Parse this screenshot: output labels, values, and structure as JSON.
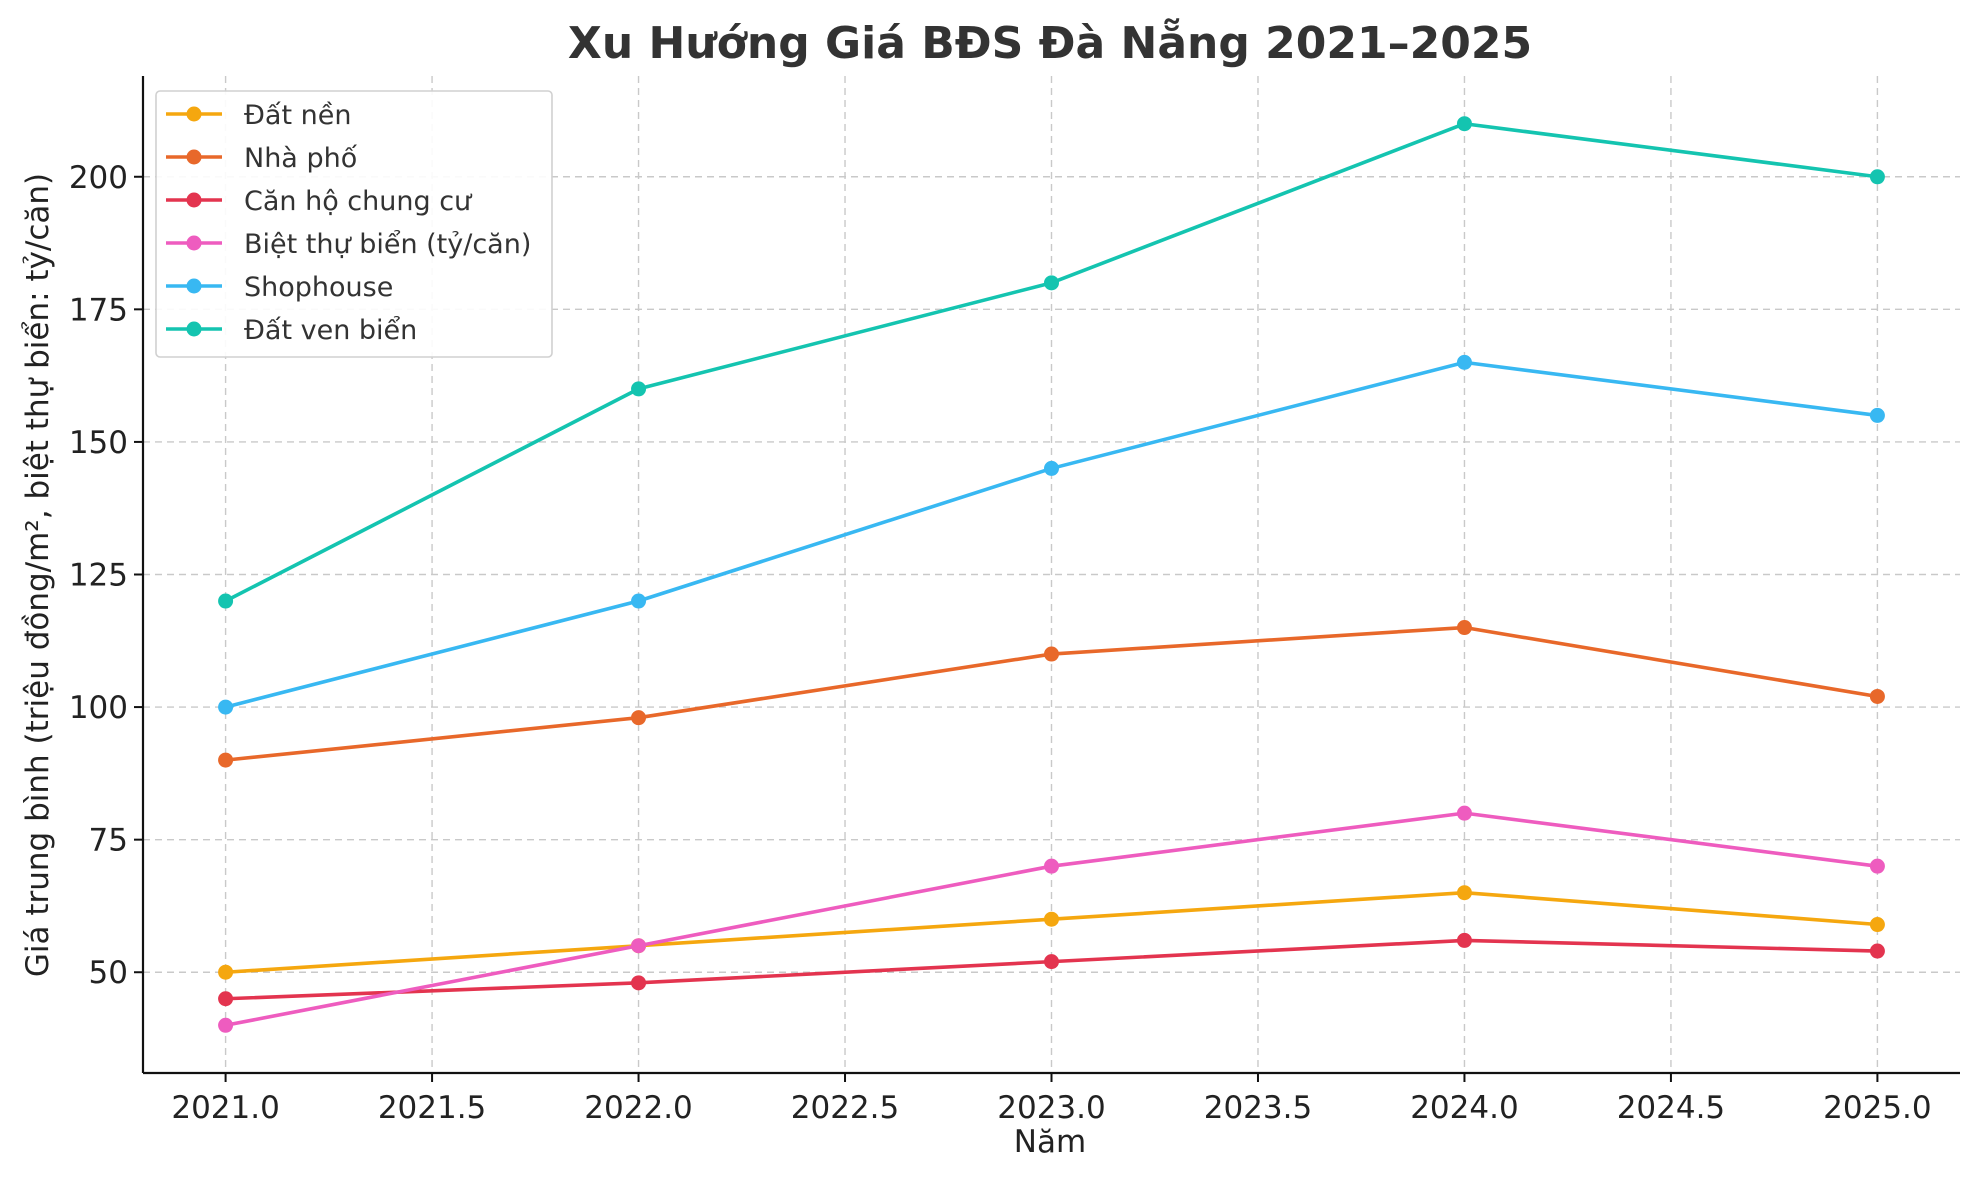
{
  "chart_data": {
    "type": "line",
    "title": "Xu Hướng Giá BĐS Đà Nẵng 2021–2025",
    "xlabel": "Năm",
    "ylabel": "Giá trung bình (triệu đồng/m², biệt thự biển: tỷ/căn)",
    "x": [
      2021,
      2022,
      2023,
      2024,
      2025
    ],
    "xlim": [
      2020.8,
      2025.2
    ],
    "ylim": [
      31,
      219
    ],
    "xticks": [
      2021.0,
      2021.5,
      2022.0,
      2022.5,
      2023.0,
      2023.5,
      2024.0,
      2024.5,
      2025.0
    ],
    "xtick_labels": [
      "2021.0",
      "2021.5",
      "2022.0",
      "2022.5",
      "2023.0",
      "2023.5",
      "2024.0",
      "2024.5",
      "2025.0"
    ],
    "yticks": [
      50,
      75,
      100,
      125,
      150,
      175,
      200
    ],
    "ytick_labels": [
      "50",
      "75",
      "100",
      "125",
      "150",
      "175",
      "200"
    ],
    "grid": true,
    "legend_position": "top-left",
    "series": [
      {
        "name": "Đất nền",
        "color": "#f5a70f",
        "values": [
          50,
          55,
          60,
          65,
          59
        ]
      },
      {
        "name": "Nhà phố",
        "color": "#e8682a",
        "values": [
          90,
          98,
          110,
          115,
          102
        ]
      },
      {
        "name": "Căn hộ chung cư",
        "color": "#e3344f",
        "values": [
          45,
          48,
          52,
          56,
          54
        ]
      },
      {
        "name": "Biệt thự biển (tỷ/căn)",
        "color": "#ee5cbf",
        "values": [
          40,
          55,
          70,
          80,
          70
        ]
      },
      {
        "name": "Shophouse",
        "color": "#38b8f2",
        "values": [
          100,
          120,
          145,
          165,
          155
        ]
      },
      {
        "name": "Đất ven biển",
        "color": "#14c4b0",
        "values": [
          120,
          160,
          180,
          210,
          200
        ]
      }
    ]
  }
}
